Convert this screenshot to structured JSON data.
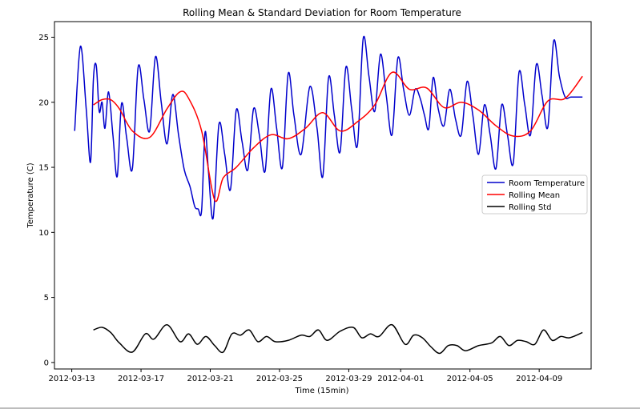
{
  "chart_data": {
    "type": "line",
    "title": "Rolling Mean & Standard Deviation for Room Temperature",
    "xlabel": "Time (15min)",
    "ylabel": "Temperature (C)",
    "xlim": [
      "2012-03-12",
      "2012-04-12"
    ],
    "ylim": [
      -0.5,
      26.2
    ],
    "x_ticks": [
      "2012-03-13",
      "2012-03-17",
      "2012-03-21",
      "2012-03-25",
      "2012-03-29",
      "2012-04-01",
      "2012-04-05",
      "2012-04-09"
    ],
    "y_ticks": [
      0,
      5,
      10,
      15,
      20,
      25
    ],
    "grid": false,
    "legend_position": "center-right",
    "series": [
      {
        "name": "Room Temperature",
        "color": "#0000cc",
        "x": [
          "2012-03-13",
          "2012-03-13",
          "2012-03-13",
          "2012-03-14",
          "2012-03-14",
          "2012-03-14",
          "2012-03-14",
          "2012-03-14",
          "2012-03-14",
          "2012-03-15",
          "2012-03-15",
          "2012-03-15",
          "2012-03-15",
          "2012-03-16",
          "2012-03-16",
          "2012-03-16",
          "2012-03-17",
          "2012-03-17",
          "2012-03-17",
          "2012-03-18",
          "2012-03-18",
          "2012-03-18",
          "2012-03-19",
          "2012-03-19",
          "2012-03-19",
          "2012-03-20",
          "2012-03-20",
          "2012-03-20",
          "2012-03-20",
          "2012-03-20",
          "2012-03-21",
          "2012-03-21",
          "2012-03-21",
          "2012-03-22",
          "2012-03-22",
          "2012-03-22",
          "2012-03-23",
          "2012-03-23",
          "2012-03-23",
          "2012-03-24",
          "2012-03-24",
          "2012-03-24",
          "2012-03-25",
          "2012-03-25",
          "2012-03-25",
          "2012-03-26",
          "2012-03-26",
          "2012-03-27",
          "2012-03-27",
          "2012-03-27",
          "2012-03-28",
          "2012-03-28",
          "2012-03-28",
          "2012-03-29",
          "2012-03-29",
          "2012-03-29",
          "2012-03-30",
          "2012-03-30",
          "2012-03-30",
          "2012-03-31",
          "2012-03-31",
          "2012-03-31",
          "2012-04-01",
          "2012-04-01",
          "2012-04-01",
          "2012-04-02",
          "2012-04-02",
          "2012-04-02",
          "2012-04-02",
          "2012-04-03",
          "2012-04-03",
          "2012-04-03",
          "2012-04-04",
          "2012-04-04",
          "2012-04-04",
          "2012-04-05",
          "2012-04-05",
          "2012-04-05",
          "2012-04-06",
          "2012-04-06",
          "2012-04-06",
          "2012-04-07",
          "2012-04-07",
          "2012-04-07",
          "2012-04-08",
          "2012-04-08",
          "2012-04-08",
          "2012-04-09",
          "2012-04-09",
          "2012-04-09",
          "2012-04-10",
          "2012-04-10",
          "2012-04-10",
          "2012-04-11"
        ],
        "values": [
          17.8,
          24.3,
          19.5,
          15.4,
          21.8,
          22.8,
          19.3,
          20.0,
          18.0,
          20.8,
          17.5,
          14.3,
          19.9,
          17.3,
          14.9,
          22.7,
          20.2,
          17.8,
          23.5,
          20.0,
          16.8,
          20.6,
          17.5,
          14.8,
          13.5,
          12.0,
          11.8,
          11.7,
          17.7,
          14.6,
          11.1,
          18.3,
          16.0,
          13.3,
          19.4,
          17.0,
          14.8,
          19.5,
          17.5,
          14.7,
          21.0,
          18.0,
          15.0,
          22.2,
          19.0,
          16.0,
          21.2,
          18.0,
          14.3,
          21.9,
          19.0,
          16.2,
          22.7,
          19.5,
          16.7,
          24.9,
          22.0,
          19.3,
          23.7,
          20.5,
          17.5,
          23.4,
          21.0,
          19.0,
          21.0,
          20.3,
          19.0,
          18.0,
          21.9,
          19.5,
          18.2,
          21.0,
          18.7,
          17.5,
          21.6,
          19.0,
          16.0,
          19.8,
          17.5,
          14.9,
          19.8,
          17.5,
          15.3,
          22.3,
          19.8,
          17.5,
          22.9,
          20.5,
          18.1,
          24.7,
          22.0,
          20.4,
          20.4,
          20.4
        ]
      },
      {
        "name": "Rolling Mean",
        "color": "#ff0000",
        "x": [
          "2012-03-14",
          "2012-03-14",
          "2012-03-15",
          "2012-03-15",
          "2012-03-16",
          "2012-03-17",
          "2012-03-18",
          "2012-03-19",
          "2012-03-19",
          "2012-03-20",
          "2012-03-21",
          "2012-03-21",
          "2012-03-22",
          "2012-03-23",
          "2012-03-24",
          "2012-03-25",
          "2012-03-26",
          "2012-03-27",
          "2012-03-28",
          "2012-03-29",
          "2012-03-30",
          "2012-03-31",
          "2012-04-01",
          "2012-04-02",
          "2012-04-03",
          "2012-04-04",
          "2012-04-05",
          "2012-04-06",
          "2012-04-07",
          "2012-04-08",
          "2012-04-09",
          "2012-04-10",
          "2012-04-11"
        ],
        "values": [
          19.8,
          20.2,
          20.2,
          19.5,
          17.8,
          17.3,
          19.5,
          20.8,
          20.3,
          17.8,
          12.5,
          14.2,
          15.0,
          16.5,
          17.5,
          17.2,
          18.0,
          19.2,
          17.8,
          18.5,
          19.8,
          22.3,
          21.0,
          21.1,
          19.6,
          20.0,
          19.4,
          18.2,
          17.4,
          17.8,
          20.1,
          20.3,
          22.0
        ]
      },
      {
        "name": "Rolling Std",
        "color": "#000000",
        "x": [
          "2012-03-14",
          "2012-03-14",
          "2012-03-15",
          "2012-03-15",
          "2012-03-16",
          "2012-03-17",
          "2012-03-17",
          "2012-03-18",
          "2012-03-19",
          "2012-03-19",
          "2012-03-20",
          "2012-03-20",
          "2012-03-21",
          "2012-03-21",
          "2012-03-22",
          "2012-03-22",
          "2012-03-23",
          "2012-03-23",
          "2012-03-24",
          "2012-03-24",
          "2012-03-25",
          "2012-03-26",
          "2012-03-26",
          "2012-03-27",
          "2012-03-27",
          "2012-03-28",
          "2012-03-29",
          "2012-03-29",
          "2012-03-30",
          "2012-03-30",
          "2012-03-31",
          "2012-04-01",
          "2012-04-01",
          "2012-04-02",
          "2012-04-02",
          "2012-04-03",
          "2012-04-03",
          "2012-04-04",
          "2012-04-04",
          "2012-04-05",
          "2012-04-06",
          "2012-04-06",
          "2012-04-07",
          "2012-04-07",
          "2012-04-08",
          "2012-04-08",
          "2012-04-09",
          "2012-04-09",
          "2012-04-10",
          "2012-04-10",
          "2012-04-11"
        ],
        "values": [
          2.5,
          2.7,
          2.3,
          1.5,
          0.8,
          2.2,
          1.8,
          2.9,
          1.6,
          2.2,
          1.4,
          2.0,
          1.3,
          0.8,
          2.2,
          2.1,
          2.5,
          1.6,
          2.0,
          1.6,
          1.7,
          2.1,
          2.0,
          2.5,
          1.7,
          2.4,
          2.7,
          1.9,
          2.2,
          2.0,
          2.9,
          1.4,
          2.1,
          1.9,
          1.2,
          0.7,
          1.3,
          1.3,
          0.9,
          1.3,
          1.5,
          2.0,
          1.3,
          1.7,
          1.6,
          1.4,
          2.5,
          1.7,
          2.0,
          1.9,
          2.3
        ]
      }
    ]
  }
}
